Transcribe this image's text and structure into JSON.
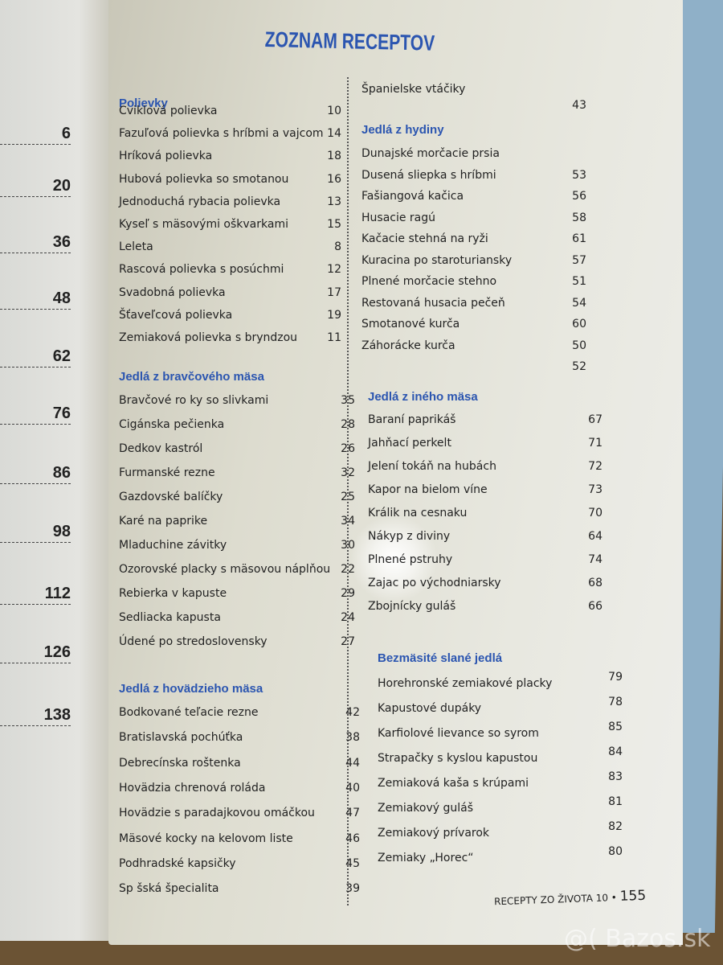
{
  "left_page": {
    "page_numbers": [
      "6",
      "20",
      "36",
      "48",
      "62",
      "76",
      "86",
      "98",
      "112",
      "126",
      "138"
    ]
  },
  "title": "ZOZNAM RECEPTOV",
  "left_column": [
    {
      "heading": "Polievky",
      "items": [
        {
          "name": "Cviklová polievka",
          "page": "10"
        },
        {
          "name": "Fazuľová polievka s hríbmi a vajcom",
          "page": "14"
        },
        {
          "name": "Hríková polievka",
          "page": "18"
        },
        {
          "name": "Hubová polievka so smotanou",
          "page": "16"
        },
        {
          "name": "Jednoduchá rybacia polievka",
          "page": "13"
        },
        {
          "name": "Kyseľ s mäsovými oškvarkami",
          "page": "15"
        },
        {
          "name": "Leleta",
          "page": "8"
        },
        {
          "name": "Rascová polievka s posúchmi",
          "page": "12"
        },
        {
          "name": "Svadobná polievka",
          "page": "17"
        },
        {
          "name": "Šťaveľcová polievka",
          "page": "19"
        },
        {
          "name": "Zemiaková polievka s bryndzou",
          "page": "11"
        }
      ]
    },
    {
      "heading": "Jedlá z bravčového mäsa",
      "items": [
        {
          "name": "Bravčové ro ky so slivkami",
          "page": "35"
        },
        {
          "name": "Cigánska pečienka",
          "page": "28"
        },
        {
          "name": "Dedkov kastról",
          "page": "26"
        },
        {
          "name": "Furmanské rezne",
          "page": "32"
        },
        {
          "name": "Gazdovské balíčky",
          "page": "25"
        },
        {
          "name": "Karé na paprike",
          "page": "34"
        },
        {
          "name": "Mladuchine závitky",
          "page": "30"
        },
        {
          "name": "Ozorovské placky s mäsovou náplňou",
          "page": "22"
        },
        {
          "name": "Rebierka v kapuste",
          "page": "29"
        },
        {
          "name": "Sedliacka kapusta",
          "page": "24"
        },
        {
          "name": "Údené po stredoslovensky",
          "page": "27"
        }
      ]
    },
    {
      "heading": "Jedlá z hovädzieho mäsa",
      "items": [
        {
          "name": "Bodkované teľacie rezne",
          "page": "42"
        },
        {
          "name": "Bratislavská pochúťka",
          "page": "38"
        },
        {
          "name": "Debrecínska roštenka",
          "page": "44"
        },
        {
          "name": "Hovädzia chrenová roláda",
          "page": "40"
        },
        {
          "name": "Hovädzie s paradajkovou omáčkou",
          "page": "47"
        },
        {
          "name": "Mäsové kocky na kelovom liste",
          "page": "46"
        },
        {
          "name": "Podhradské kapsičky",
          "page": "45"
        },
        {
          "name": "Sp šská špecialita",
          "page": "39"
        }
      ]
    }
  ],
  "right_column": [
    {
      "heading": "",
      "items": [
        {
          "name": "Španielske vtáčiky",
          "page": "43"
        }
      ]
    },
    {
      "heading": "Jedlá z hydiny",
      "items": [
        {
          "name": "Dunajské morčacie prsia",
          "page": ""
        },
        {
          "name": "Dusená sliepka s hríbmi",
          "page": "53"
        },
        {
          "name": "Fašiangová kačica",
          "page": "56"
        },
        {
          "name": "Husacie ragú",
          "page": "58"
        },
        {
          "name": "Kačacie stehná na ryži",
          "page": "61"
        },
        {
          "name": "Kuracina po staroturiansky",
          "page": "57"
        },
        {
          "name": "Plnené morčacie stehno",
          "page": "51"
        },
        {
          "name": "Restovaná husacia pečeň",
          "page": "54"
        },
        {
          "name": "Smotanové kurča",
          "page": "60"
        },
        {
          "name": "Záhorácke kurča",
          "page": "50"
        },
        {
          "name": "",
          "page": "52"
        }
      ]
    },
    {
      "heading": "Jedlá z iného mäsa",
      "items": [
        {
          "name": "Baraní paprikáš",
          "page": "67"
        },
        {
          "name": "Jahňací perkelt",
          "page": "71"
        },
        {
          "name": "Jelení tokáň na hubách",
          "page": "72"
        },
        {
          "name": "Kapor na bielom víne",
          "page": "73"
        },
        {
          "name": "Králik na cesnaku",
          "page": "70"
        },
        {
          "name": "Nákyp z diviny",
          "page": "64"
        },
        {
          "name": "Plnené pstruhy",
          "page": "74"
        },
        {
          "name": "Zajac po východniarsky",
          "page": "68"
        },
        {
          "name": "Zbojnícky guláš",
          "page": "66"
        }
      ]
    },
    {
      "heading": "Bezmäsité slané jedlá",
      "items": [
        {
          "name": "Horehronské zemiakové placky",
          "page": "79"
        },
        {
          "name": "Kapustové dupáky",
          "page": "78"
        },
        {
          "name": "Karfiolové lievance so syrom",
          "page": "85"
        },
        {
          "name": "Strapačky s kyslou kapustou",
          "page": "84"
        },
        {
          "name": "Zemiaková kaša s krúpami",
          "page": "83"
        },
        {
          "name": "Zemiakový guláš",
          "page": "81"
        },
        {
          "name": "Zemiakový prívarok",
          "page": "82"
        },
        {
          "name": "Zemiaky „Horec“",
          "page": "80"
        }
      ]
    }
  ],
  "footer": {
    "book_title": "RECEPTY ZO ŽIVOTA 10 •",
    "page_number": "155"
  },
  "watermark": "@( Bazos.sk",
  "colors": {
    "heading": "#2b55b0",
    "cover": "#8fb0c8"
  }
}
